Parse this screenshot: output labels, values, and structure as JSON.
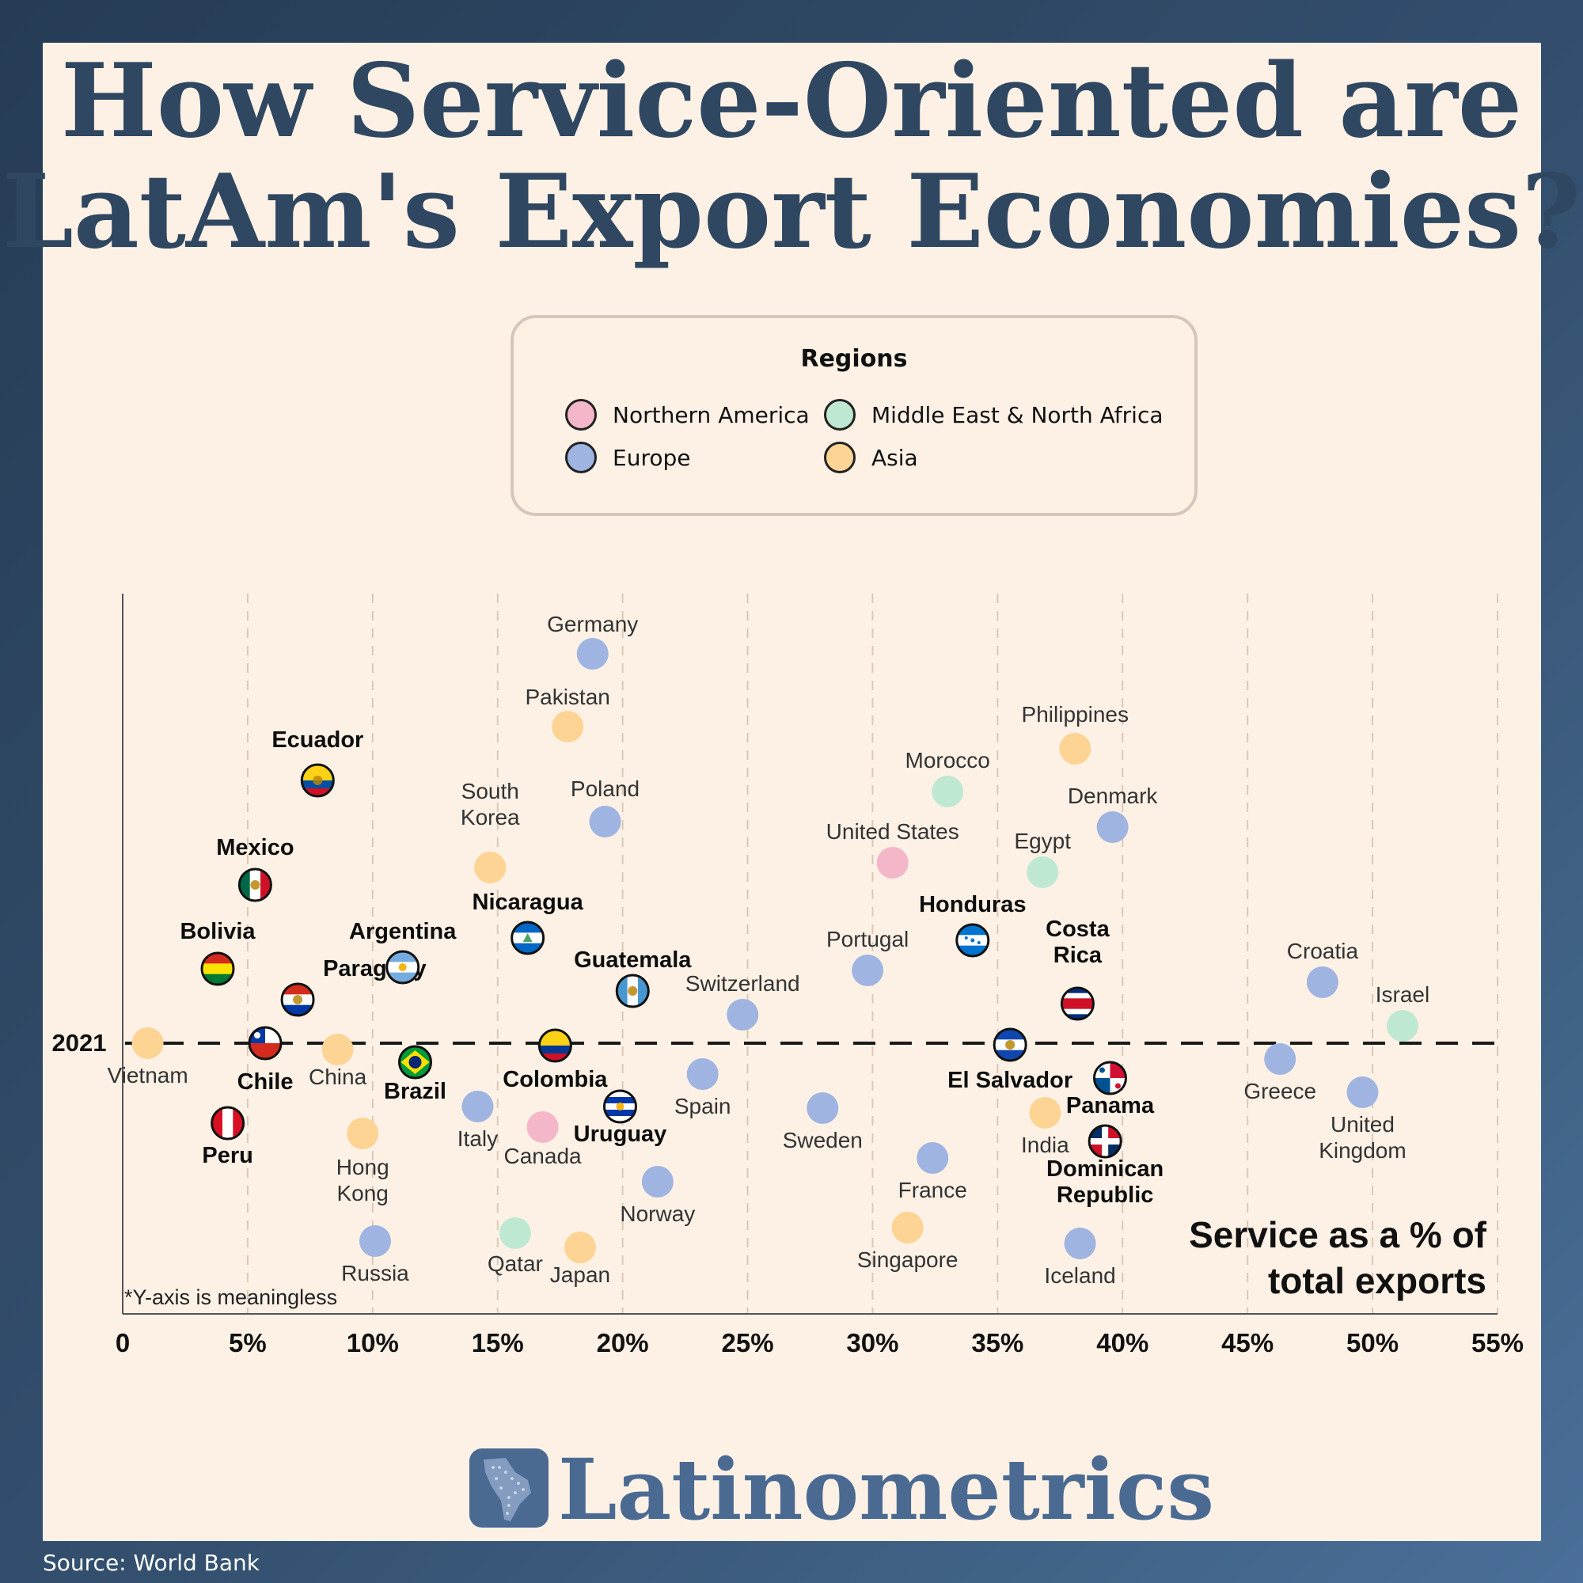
{
  "title_line1": "How Service-Oriented are",
  "title_line2": "LatAm's Export Economies?",
  "legend": {
    "title": "Regions",
    "items": [
      {
        "label": "Northern America",
        "color": "#f4b7c9"
      },
      {
        "label": "Middle East & North Africa",
        "color": "#bfe8d2"
      },
      {
        "label": "Europe",
        "color": "#9fb4e0"
      },
      {
        "label": "Asia",
        "color": "#fdd494"
      }
    ]
  },
  "axis_title": [
    "Service as a % of",
    "total exports"
  ],
  "y_category": "2021",
  "footnote": "*Y-axis is meaningless",
  "brand": "Latinometrics",
  "logo_icon": "latin-america-map-icon",
  "source": "Source: World Bank",
  "chart_data": {
    "type": "scatter",
    "xlabel": "Service as a % of total exports",
    "xlim": [
      0,
      55
    ],
    "x_ticks": [
      "0",
      "5%",
      "10%",
      "15%",
      "20%",
      "25%",
      "30%",
      "35%",
      "40%",
      "45%",
      "50%",
      "55%"
    ],
    "x_tick_values": [
      0,
      5,
      10,
      15,
      20,
      25,
      30,
      35,
      40,
      45,
      50,
      55
    ],
    "grid_x": true,
    "latam_marker": "flag-icon",
    "latam": [
      {
        "name": "Ecuador",
        "x": 7.8,
        "flag": "ecuador-flag-icon"
      },
      {
        "name": "Mexico",
        "x": 5.3,
        "flag": "mexico-flag-icon"
      },
      {
        "name": "Bolivia",
        "x": 3.8,
        "flag": "bolivia-flag-icon"
      },
      {
        "name": "Paraguay",
        "x": 7.0,
        "flag": "paraguay-flag-icon"
      },
      {
        "name": "Argentina",
        "x": 11.2,
        "flag": "argentina-flag-icon"
      },
      {
        "name": "Chile",
        "x": 5.7,
        "flag": "chile-flag-icon"
      },
      {
        "name": "Brazil",
        "x": 11.7,
        "flag": "brazil-flag-icon"
      },
      {
        "name": "Peru",
        "x": 4.2,
        "flag": "peru-flag-icon"
      },
      {
        "name": "Nicaragua",
        "x": 16.2,
        "flag": "nicaragua-flag-icon"
      },
      {
        "name": "Guatemala",
        "x": 20.4,
        "flag": "guatemala-flag-icon"
      },
      {
        "name": "Colombia",
        "x": 17.3,
        "flag": "colombia-flag-icon"
      },
      {
        "name": "Uruguay",
        "x": 19.9,
        "flag": "uruguay-flag-icon"
      },
      {
        "name": "Honduras",
        "x": 34.0,
        "flag": "honduras-flag-icon"
      },
      {
        "name": "El Salvador",
        "x": 35.5,
        "flag": "el-salvador-flag-icon"
      },
      {
        "name": "Costa Rica",
        "x": 38.2,
        "flag": "costa-rica-flag-icon"
      },
      {
        "name": "Panama",
        "x": 39.5,
        "flag": "panama-flag-icon"
      },
      {
        "name": "Dominican Republic",
        "x": 39.3,
        "flag": "dominican-republic-flag-icon"
      }
    ],
    "comparators": [
      {
        "name": "Vietnam",
        "x": 1.0,
        "region": "Asia"
      },
      {
        "name": "China",
        "x": 8.6,
        "region": "Asia"
      },
      {
        "name": "Hong Kong",
        "x": 9.6,
        "region": "Asia"
      },
      {
        "name": "Russia",
        "x": 10.1,
        "region": "Europe"
      },
      {
        "name": "South Korea",
        "x": 14.7,
        "region": "Asia"
      },
      {
        "name": "Italy",
        "x": 14.2,
        "region": "Europe"
      },
      {
        "name": "Qatar",
        "x": 15.7,
        "region": "Middle East & North Africa"
      },
      {
        "name": "Canada",
        "x": 16.8,
        "region": "Northern America"
      },
      {
        "name": "Pakistan",
        "x": 17.8,
        "region": "Asia"
      },
      {
        "name": "Japan",
        "x": 18.3,
        "region": "Asia"
      },
      {
        "name": "Germany",
        "x": 18.8,
        "region": "Europe"
      },
      {
        "name": "Poland",
        "x": 19.3,
        "region": "Europe"
      },
      {
        "name": "Norway",
        "x": 21.4,
        "region": "Europe"
      },
      {
        "name": "Spain",
        "x": 23.2,
        "region": "Europe"
      },
      {
        "name": "Switzerland",
        "x": 24.8,
        "region": "Europe"
      },
      {
        "name": "Sweden",
        "x": 28.0,
        "region": "Europe"
      },
      {
        "name": "Portugal",
        "x": 29.8,
        "region": "Europe"
      },
      {
        "name": "United States",
        "x": 30.8,
        "region": "Northern America"
      },
      {
        "name": "Singapore",
        "x": 31.4,
        "region": "Asia"
      },
      {
        "name": "France",
        "x": 32.4,
        "region": "Europe"
      },
      {
        "name": "Morocco",
        "x": 33.0,
        "region": "Middle East & North Africa"
      },
      {
        "name": "India",
        "x": 36.9,
        "region": "Asia"
      },
      {
        "name": "Egypt",
        "x": 36.8,
        "region": "Middle East & North Africa"
      },
      {
        "name": "Philippines",
        "x": 38.1,
        "region": "Asia"
      },
      {
        "name": "Iceland",
        "x": 38.3,
        "region": "Europe"
      },
      {
        "name": "Denmark",
        "x": 39.6,
        "region": "Europe"
      },
      {
        "name": "Greece",
        "x": 46.3,
        "region": "Europe"
      },
      {
        "name": "Croatia",
        "x": 48.0,
        "region": "Europe"
      },
      {
        "name": "United Kingdom",
        "x": 49.6,
        "region": "Europe"
      },
      {
        "name": "Israel",
        "x": 51.2,
        "region": "Middle East & North Africa"
      }
    ]
  }
}
